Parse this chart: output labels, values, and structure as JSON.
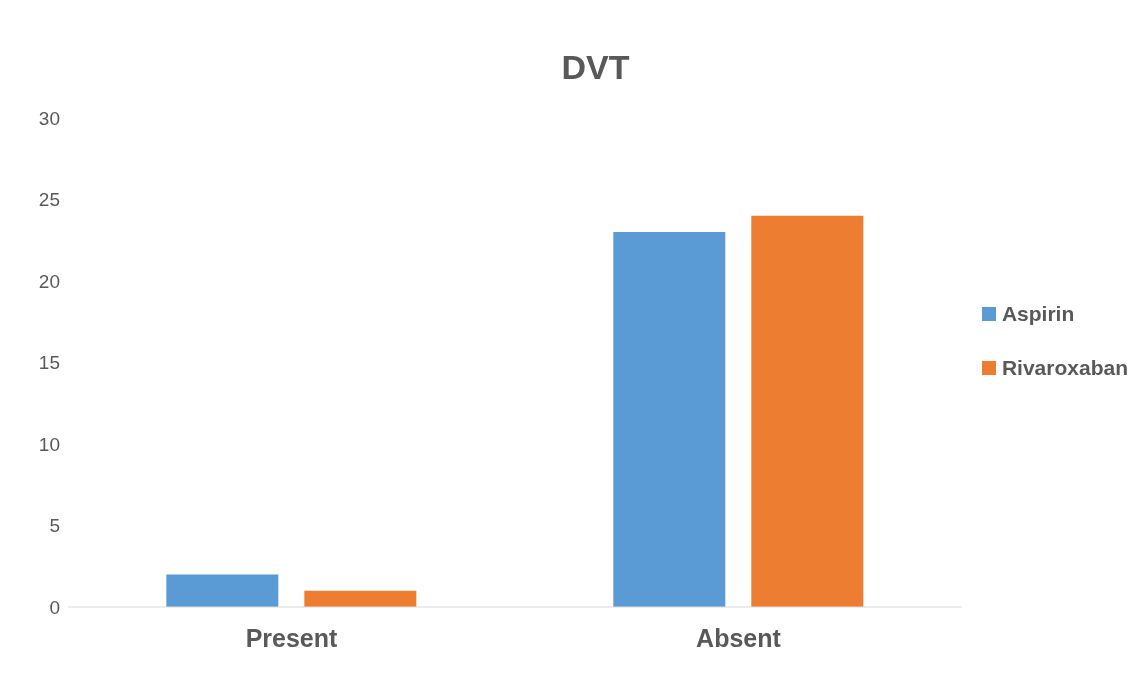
{
  "chart_data": {
    "type": "bar",
    "title": "DVT",
    "categories": [
      "Present",
      "Absent"
    ],
    "series": [
      {
        "name": "Aspirin",
        "color": "#5b9bd5",
        "values": [
          2,
          23
        ]
      },
      {
        "name": "Rivaroxaban",
        "color": "#ed7d31",
        "values": [
          1,
          24
        ]
      }
    ],
    "ylim": [
      0,
      30
    ],
    "yticks": [
      0,
      5,
      10,
      15,
      20,
      25,
      30
    ],
    "grid": false,
    "legend": "right"
  }
}
